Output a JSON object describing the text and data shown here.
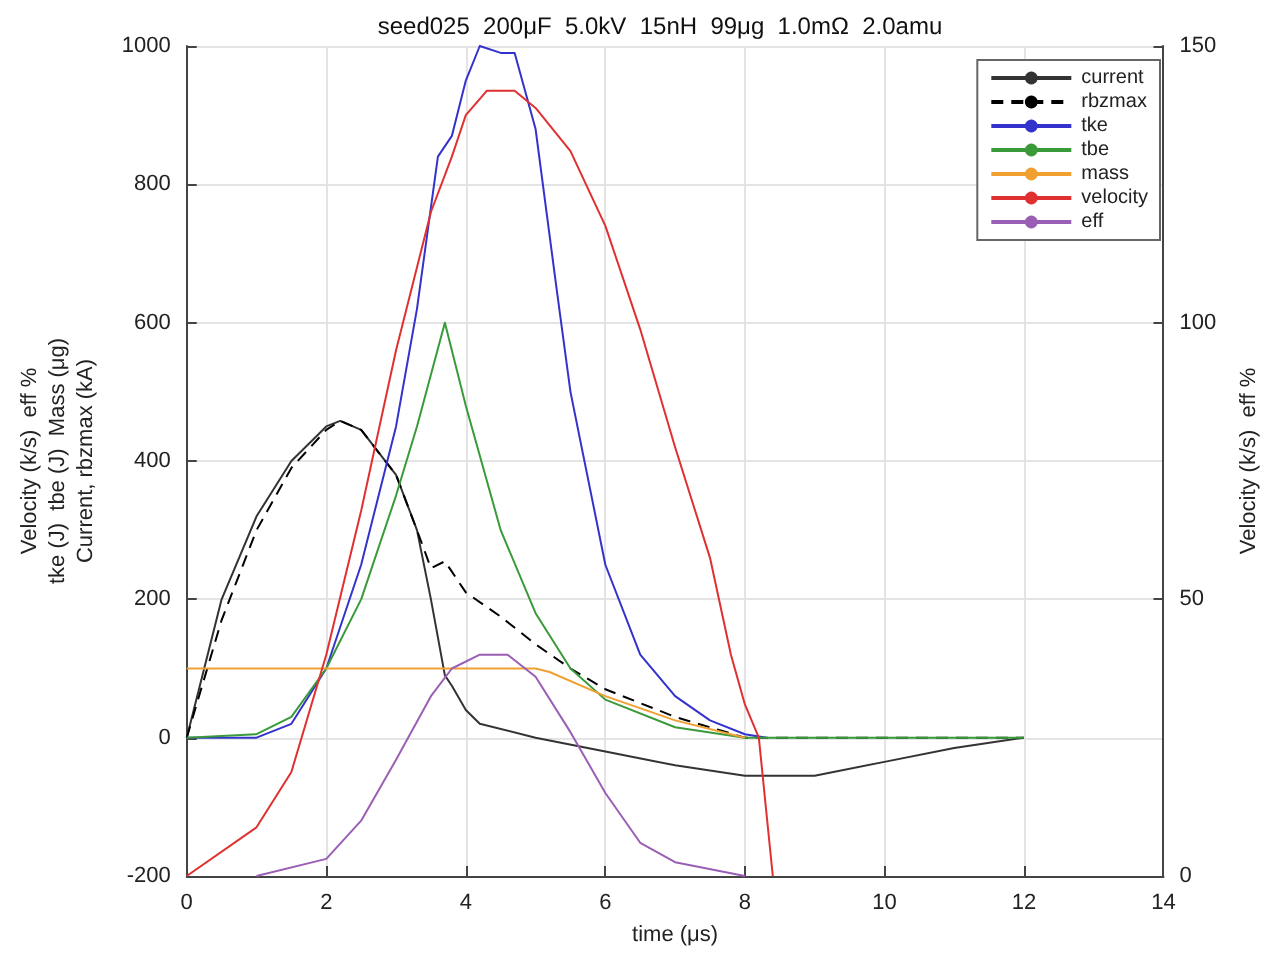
{
  "chart_data": {
    "type": "line",
    "title": "seed025  200μF  5.0kV  15nH  99μg  1.0mΩ  2.0amu",
    "xlabel": "time (μs)",
    "ylabel": "Velocity (k/s)  eff %\ntke (J)  tbe (J)  Mass (μg)\nCurrent, rbzmax (kA)",
    "y2label": "Velocity (k/s)  eff %",
    "xlim": [
      0,
      14
    ],
    "xticks": [
      0,
      2,
      4,
      6,
      8,
      10,
      12,
      14
    ],
    "ylim": [
      -200,
      1000
    ],
    "yticks": [
      -200,
      0,
      200,
      400,
      600,
      800,
      1000
    ],
    "y2lim": [
      0,
      150
    ],
    "y2ticks": [
      0,
      50,
      100,
      150
    ],
    "grid": true,
    "legend": "top right",
    "series": [
      {
        "name": "current",
        "color": "#333333",
        "line_style": "solid",
        "x": [
          0,
          0.5,
          1,
          1.5,
          2,
          2.2,
          2.5,
          3,
          3.3,
          3.5,
          3.7,
          3.8,
          4,
          4.2,
          5,
          6,
          7,
          8,
          9,
          10,
          11,
          12
        ],
        "values": [
          0,
          200,
          320,
          400,
          450,
          458,
          445,
          380,
          300,
          200,
          90,
          75,
          40,
          20,
          0,
          -20,
          -40,
          -55,
          -55,
          -35,
          -15,
          0
        ]
      },
      {
        "name": "rbzmax",
        "color": "#000000",
        "line_style": "dashed",
        "x": [
          0,
          0.5,
          1,
          1.5,
          2,
          2.2,
          2.5,
          3,
          3.3,
          3.5,
          3.7,
          3.8,
          4,
          4.5,
          5,
          5.5,
          6,
          7,
          8,
          12
        ],
        "values": [
          0,
          170,
          300,
          390,
          445,
          458,
          445,
          380,
          300,
          245,
          255,
          240,
          210,
          175,
          135,
          100,
          70,
          30,
          0,
          0
        ]
      },
      {
        "name": "tke",
        "color": "#3333cc",
        "line_style": "solid",
        "x": [
          0,
          1,
          1.5,
          2,
          2.5,
          3,
          3.3,
          3.6,
          3.8,
          4,
          4.2,
          4.5,
          4.7,
          5,
          5.3,
          5.5,
          6,
          6.5,
          7,
          7.5,
          8,
          8.3
        ],
        "values": [
          0,
          0,
          20,
          100,
          250,
          450,
          620,
          840,
          870,
          950,
          1000,
          990,
          990,
          880,
          650,
          500,
          250,
          120,
          60,
          25,
          5,
          0
        ]
      },
      {
        "name": "tbe",
        "color": "#3a9a3a",
        "line_style": "solid",
        "x": [
          0,
          1,
          1.5,
          2,
          2.5,
          3,
          3.3,
          3.7,
          4,
          4.5,
          5,
          5.5,
          6,
          7,
          8,
          12
        ],
        "values": [
          0,
          5,
          30,
          100,
          200,
          350,
          450,
          600,
          480,
          300,
          180,
          100,
          55,
          15,
          0,
          0
        ]
      },
      {
        "name": "mass",
        "color": "#f0a030",
        "line_style": "solid",
        "x": [
          0,
          5,
          5.2,
          6,
          7,
          8
        ],
        "values": [
          100,
          100,
          95,
          60,
          25,
          0
        ]
      },
      {
        "name": "velocity",
        "color": "#e03030",
        "line_style": "solid",
        "axis": "y2",
        "x": [
          0,
          1,
          1.5,
          2,
          2.5,
          3,
          3.5,
          3.8,
          4,
          4.3,
          4.7,
          5,
          5.5,
          6,
          6.5,
          7,
          7.5,
          7.8,
          8,
          8.2,
          8.3,
          8.4
        ],
        "values": [
          0,
          8.8,
          18.8,
          40,
          66,
          95,
          120,
          130,
          137.5,
          141.9,
          141.9,
          138.8,
          131,
          117.5,
          98.8,
          77.5,
          57.5,
          40,
          31,
          25,
          12.5,
          0
        ]
      },
      {
        "name": "eff",
        "color": "#9a5fb5",
        "line_style": "solid",
        "axis": "y2",
        "x": [
          1,
          2,
          2.5,
          3,
          3.5,
          3.8,
          4.2,
          4.6,
          5,
          5.5,
          6,
          6.5,
          7,
          8
        ],
        "values": [
          0,
          3.1,
          10,
          21,
          32.5,
          37.5,
          40,
          40,
          36,
          26,
          15,
          6,
          2.5,
          0
        ]
      }
    ]
  }
}
